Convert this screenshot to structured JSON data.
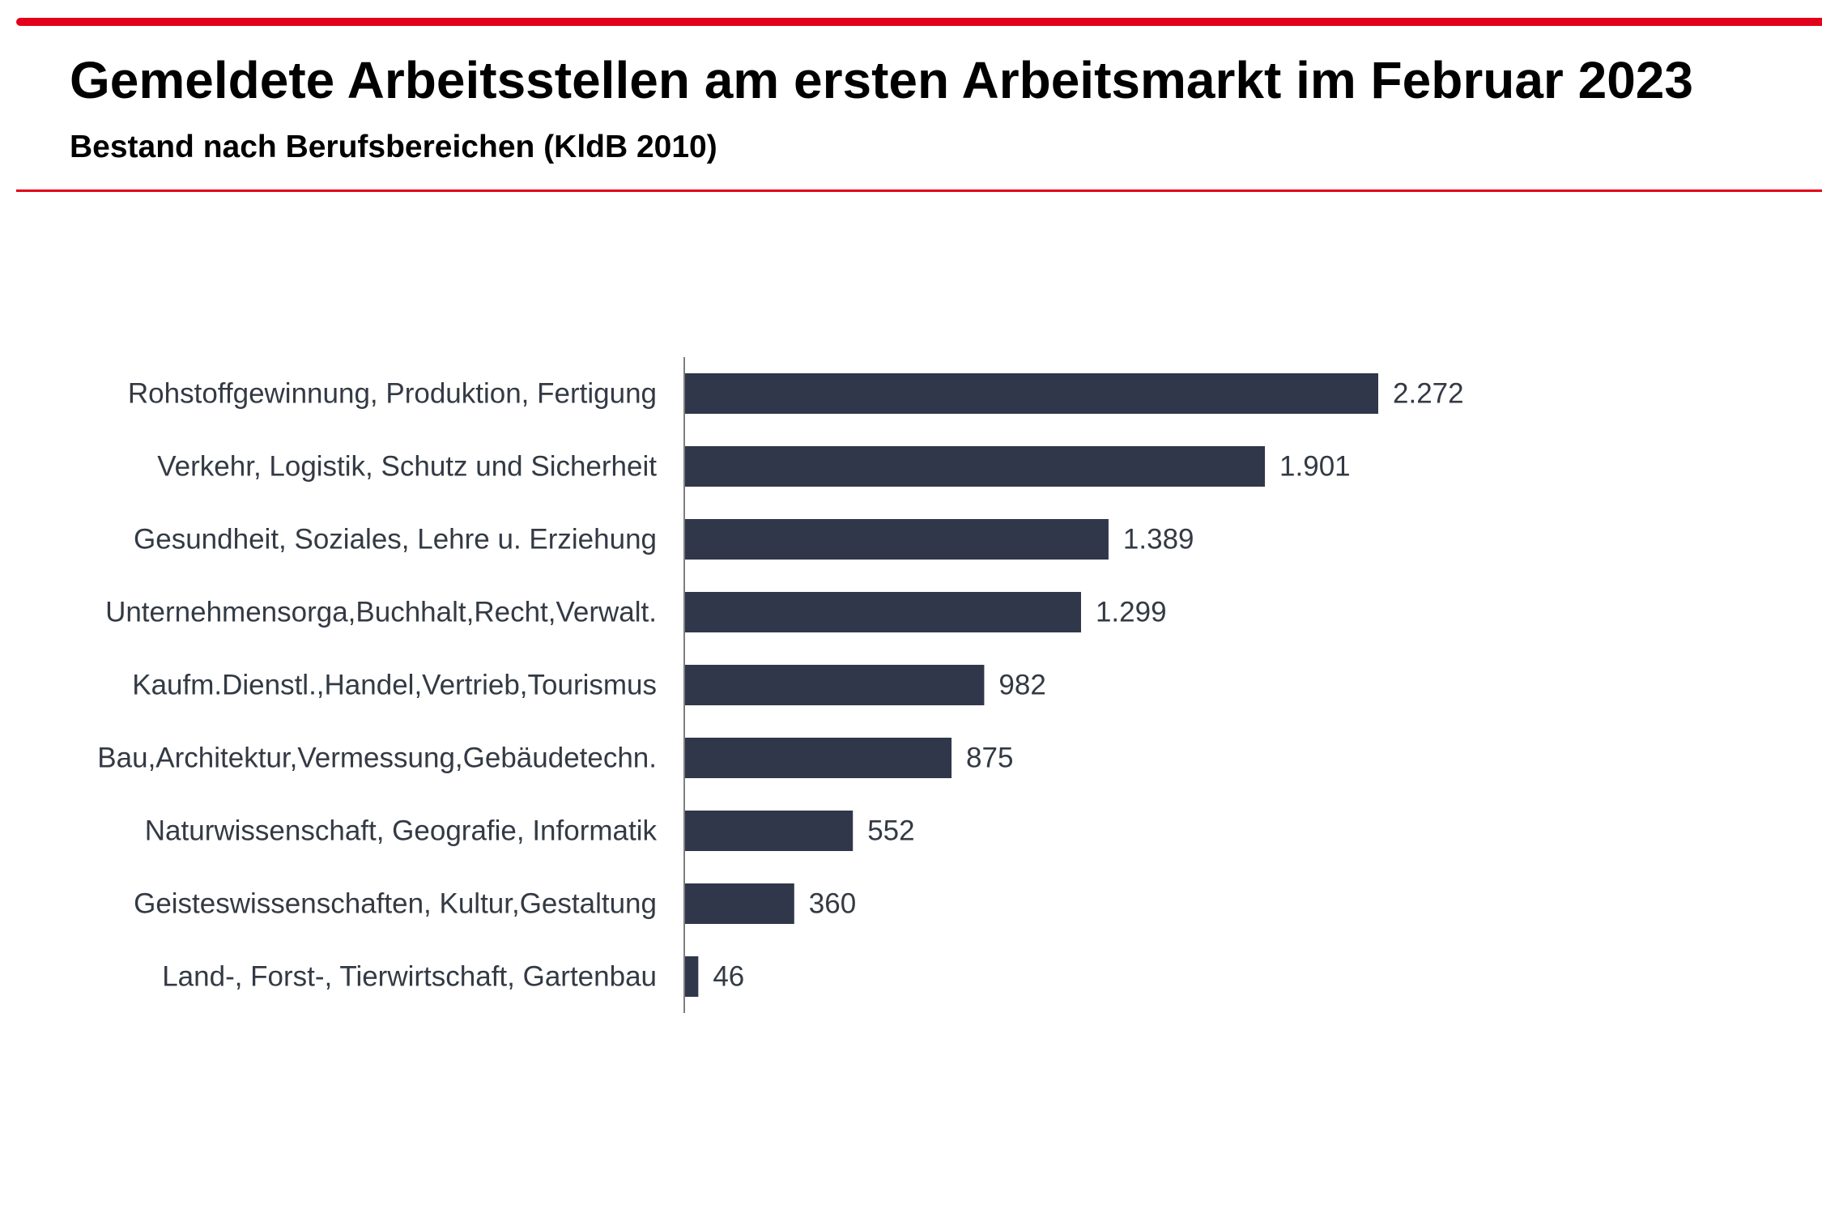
{
  "header": {
    "title": "Gemeldete Arbeitsstellen am ersten Arbeitsmarkt im Februar 2023",
    "subtitle": "Bestand nach Berufsbereichen (KldB 2010)"
  },
  "colors": {
    "accent": "#e2001a",
    "bar": "#31374a",
    "axis": "#7f7f7f",
    "label": "#333a44"
  },
  "chart_data": {
    "type": "bar",
    "orientation": "horizontal",
    "title": "Gemeldete Arbeitsstellen am ersten Arbeitsmarkt im Februar 2023",
    "subtitle": "Bestand nach Berufsbereichen (KldB 2010)",
    "xlabel": "",
    "ylabel": "",
    "grid": false,
    "legend": "none",
    "xlim": [
      0,
      2272
    ],
    "categories": [
      "Rohstoffgewinnung, Produktion, Fertigung",
      "Verkehr, Logistik, Schutz und Sicherheit",
      "Gesundheit, Soziales, Lehre u. Erziehung",
      "Unternehmensorga,Buchhalt,Recht,Verwalt.",
      "Kaufm.Dienstl.,Handel,Vertrieb,Tourismus",
      "Bau,Architektur,Vermessung,Gebäudetechn.",
      "Naturwissenschaft, Geografie, Informatik",
      "Geisteswissenschaften, Kultur,Gestaltung",
      "Land-, Forst-, Tierwirtschaft, Gartenbau"
    ],
    "values": [
      2272,
      1901,
      1389,
      1299,
      982,
      875,
      552,
      360,
      46
    ],
    "value_labels": [
      "2.272",
      "1.901",
      "1.389",
      "1.299",
      "982",
      "875",
      "552",
      "360",
      "46"
    ]
  }
}
